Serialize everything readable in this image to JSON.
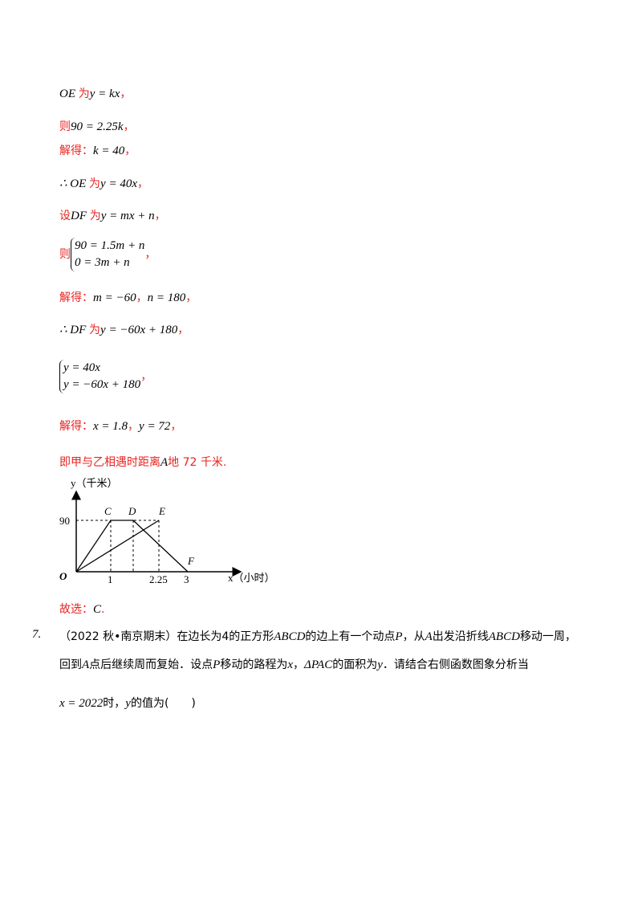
{
  "solution": [
    [
      "OE ",
      "为",
      "y = kx",
      "，"
    ],
    [
      "则",
      "90 = 2.25k",
      "，"
    ],
    [
      "解得：",
      "k = 40",
      "，"
    ],
    [
      "∴ OE ",
      "为",
      "y = 40x",
      "，"
    ],
    [
      "设",
      "DF ",
      "为",
      "y = mx + n",
      "，"
    ],
    {
      "prefix": "则",
      "equations": [
        "90 = 1.5m + n",
        "0 = 3m + n"
      ],
      "suffix": "，"
    },
    [
      "解得：",
      "m = −60",
      "，",
      "n = 180",
      "，"
    ],
    [
      "∴ DF ",
      "为",
      "y = −60x + 180",
      "，"
    ],
    {
      "prefix": "",
      "equations": [
        "y = 40x",
        "y = −60x + 180"
      ],
      "suffix": "，"
    },
    [
      "解得：",
      "x = 1.8",
      "，",
      "y = 72",
      "，"
    ],
    [
      "即甲与乙相遇时距离",
      "A",
      "地 72 千米."
    ]
  ],
  "figure": {
    "y_label": "y（千米）",
    "x_label": "x（小时）",
    "points": [
      "C",
      "D",
      "E",
      "F",
      "O"
    ],
    "ticks": [
      "90",
      "1",
      "2.25",
      "3"
    ]
  },
  "answer": [
    "故选：",
    "C",
    "."
  ],
  "question": {
    "number": "7.",
    "lines": [
      [
        "（2022 秋•南京期末）在边长为4的正方形",
        "ABCD",
        "的边上有一个动点",
        "P",
        "，从",
        "A",
        "出发沿折线",
        "ABCD",
        "移动一周，"
      ],
      [
        "回到",
        "A",
        "点后继续周而复始．设点",
        "P",
        "移动的路程为",
        "x",
        "，",
        "ΔPAC",
        "的面积为",
        "y",
        "．请结合右侧函数图象分析当"
      ],
      [
        "x = 2022",
        "时，",
        "y",
        "的值为",
        "(　　)"
      ]
    ]
  }
}
